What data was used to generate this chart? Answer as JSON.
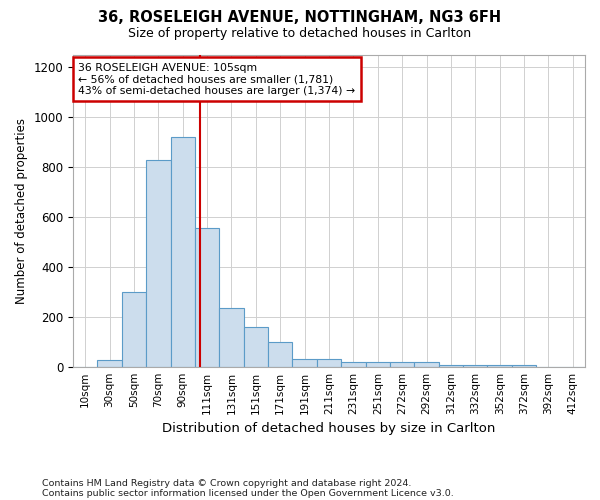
{
  "title1": "36, ROSELEIGH AVENUE, NOTTINGHAM, NG3 6FH",
  "title2": "Size of property relative to detached houses in Carlton",
  "xlabel": "Distribution of detached houses by size in Carlton",
  "ylabel": "Number of detached properties",
  "categories": [
    "10sqm",
    "30sqm",
    "50sqm",
    "70sqm",
    "90sqm",
    "111sqm",
    "131sqm",
    "151sqm",
    "171sqm",
    "191sqm",
    "211sqm",
    "231sqm",
    "251sqm",
    "272sqm",
    "292sqm",
    "312sqm",
    "332sqm",
    "352sqm",
    "372sqm",
    "392sqm",
    "412sqm"
  ],
  "values": [
    0,
    25,
    300,
    830,
    920,
    555,
    235,
    160,
    100,
    30,
    30,
    20,
    20,
    18,
    18,
    5,
    5,
    5,
    5,
    0,
    0
  ],
  "bar_color": "#ccdded",
  "bar_edge_color": "#5b9bc8",
  "red_line_color": "#cc0000",
  "annotation_line1": "36 ROSELEIGH AVENUE: 105sqm",
  "annotation_line2": "← 56% of detached houses are smaller (1,781)",
  "annotation_line3": "43% of semi-detached houses are larger (1,374) →",
  "annotation_box_color": "#ffffff",
  "annotation_box_edge": "#cc0000",
  "ylim": [
    0,
    1250
  ],
  "yticks": [
    0,
    200,
    400,
    600,
    800,
    1000,
    1200
  ],
  "footer1": "Contains HM Land Registry data © Crown copyright and database right 2024.",
  "footer2": "Contains public sector information licensed under the Open Government Licence v3.0.",
  "background_color": "#ffffff",
  "grid_color": "#d0d0d0",
  "red_line_x": 4.72
}
